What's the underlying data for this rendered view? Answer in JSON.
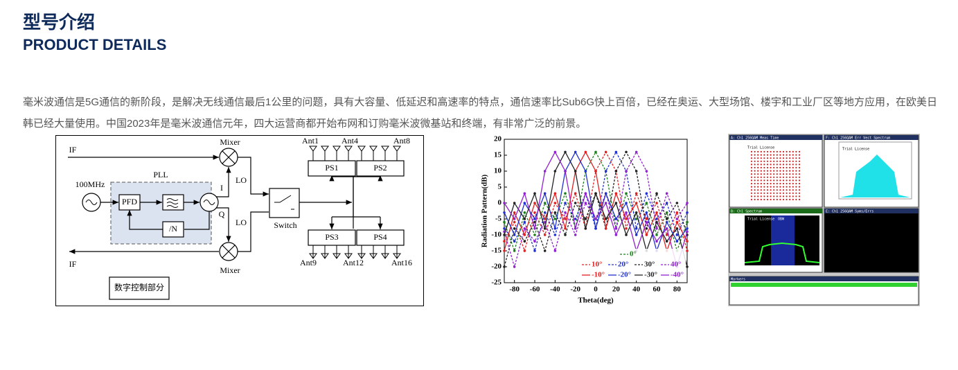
{
  "header": {
    "title": "型号介绍",
    "subtitle": "PRODUCT DETAILS"
  },
  "intro": "毫米波通信是5G通信的新阶段，是解决无线通信最后1公里的问题，具有大容量、低延迟和高速率的特点，通信速率比Sub6G快上百倍，已经在奥运、大型场馆、楼宇和工业厂区等地方应用，在欧美日韩已经大量使用。中国2023年是毫米波通信元年，四大运营商都开始布网和订购毫米波微基站和终端，有非常广泛的前景。",
  "diagram": {
    "labels": [
      "IF",
      "Mixer",
      "100MHz",
      "PLL",
      "PFD",
      "/N",
      "I",
      "Q",
      "LO",
      "LO",
      "Switch",
      "Ant1",
      "Ant4",
      "Ant8",
      "PS1",
      "PS2",
      "PS3",
      "PS4",
      "Ant9",
      "Ant12",
      "Ant16",
      "Mixer",
      "IF",
      "数字控制部分"
    ]
  },
  "chart_data": {
    "type": "line",
    "xlabel": "Theta(deg)",
    "ylabel": "Radiation Pattern(dB)",
    "x": [
      -90,
      -80,
      -70,
      -60,
      -50,
      -40,
      -30,
      -20,
      -10,
      0,
      10,
      20,
      30,
      40,
      50,
      60,
      70,
      80,
      90
    ],
    "xlim": [
      -90,
      90
    ],
    "xticks": [
      -80,
      -60,
      -40,
      -20,
      0,
      20,
      40,
      60,
      80
    ],
    "ylim": [
      -25,
      20
    ],
    "yticks": [
      20,
      15,
      10,
      5,
      0,
      -5,
      -10,
      -15,
      -20,
      -25
    ],
    "series": [
      {
        "name": "0°",
        "color": "#1a7f1a",
        "dash": true,
        "values": [
          -6,
          -15,
          -3,
          -10,
          0,
          -5,
          3,
          -8,
          10,
          16,
          10,
          -8,
          3,
          -5,
          0,
          -10,
          -3,
          -15,
          -6
        ]
      },
      {
        "name": "10°",
        "color": "#e02020",
        "dash": true,
        "values": [
          -12,
          -6,
          -15,
          -3,
          -10,
          0,
          -5,
          3,
          -8,
          10,
          16,
          10,
          -8,
          3,
          -5,
          0,
          -10,
          -3,
          -15
        ]
      },
      {
        "name": "20°",
        "color": "#2030d0",
        "dash": true,
        "values": [
          -8,
          -12,
          -6,
          -15,
          -3,
          -10,
          0,
          -5,
          3,
          -8,
          10,
          16,
          10,
          -8,
          3,
          -5,
          0,
          -10,
          -3
        ]
      },
      {
        "name": "30°",
        "color": "#222222",
        "dash": true,
        "values": [
          -20,
          -8,
          -12,
          -6,
          -15,
          -3,
          -10,
          0,
          -5,
          3,
          -8,
          10,
          16,
          10,
          -8,
          3,
          -5,
          0,
          -10
        ]
      },
      {
        "name": "40°",
        "color": "#9020d0",
        "dash": true,
        "values": [
          -9,
          -20,
          -8,
          -12,
          -6,
          -15,
          -3,
          -10,
          0,
          -5,
          3,
          -8,
          10,
          16,
          10,
          -8,
          3,
          -5,
          0
        ]
      },
      {
        "name": "-10°",
        "color": "#e02020",
        "dash": false,
        "values": [
          -15,
          -3,
          -10,
          0,
          -5,
          3,
          -8,
          10,
          16,
          10,
          -8,
          3,
          -5,
          0,
          -10,
          -3,
          -15,
          -6,
          -12
        ]
      },
      {
        "name": "-20°",
        "color": "#2030d0",
        "dash": false,
        "values": [
          -3,
          -10,
          0,
          -5,
          3,
          -8,
          10,
          16,
          10,
          -8,
          3,
          -5,
          0,
          -10,
          -3,
          -15,
          -6,
          -12,
          -8
        ]
      },
      {
        "name": "-30°",
        "color": "#222222",
        "dash": false,
        "values": [
          -10,
          0,
          -5,
          3,
          -8,
          10,
          16,
          10,
          -8,
          3,
          -5,
          0,
          -10,
          -3,
          -15,
          -6,
          -12,
          -8,
          -20
        ]
      },
      {
        "name": "-40°",
        "color": "#9020d0",
        "dash": false,
        "values": [
          0,
          -5,
          3,
          -8,
          10,
          16,
          10,
          -8,
          3,
          -5,
          0,
          -10,
          -3,
          -15,
          -6,
          -12,
          -8,
          -20,
          -9
        ]
      }
    ]
  },
  "instrument": {
    "panels": [
      "A: Ch1 256QAM Meas Time",
      "F: Ch1 256QAM Err Vect Spectrum",
      "B: Ch1 Spectrum",
      "E: Ch1 256QAM Syms/Errs",
      "Markers"
    ],
    "watermark": "Trial License",
    "obw": "OBW"
  }
}
